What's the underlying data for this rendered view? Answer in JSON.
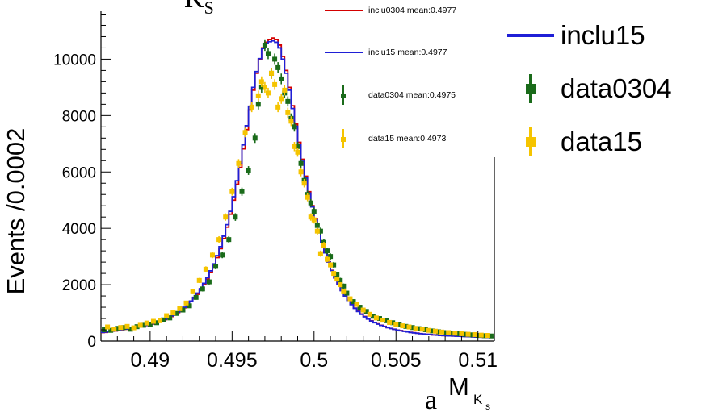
{
  "chart_data": {
    "type": "line",
    "title": "",
    "xlabel": "M",
    "xlabel_sub": "K",
    "xlabel_subsub": "s",
    "ylabel": "Events /0.0002",
    "xlim": [
      0.487,
      0.511
    ],
    "ylim": [
      0,
      11700
    ],
    "xticks": [
      0.49,
      0.495,
      0.5,
      0.505,
      0.51
    ],
    "xtick_labels": [
      "0.49",
      "0.495",
      "0.5",
      "0.505",
      "0.51"
    ],
    "yticks": [
      0,
      2000,
      4000,
      6000,
      8000,
      10000
    ],
    "ytick_labels": [
      "0",
      "2000",
      "4000",
      "6000",
      "8000",
      "10000"
    ],
    "grid": false,
    "stray_text_bottom": "a",
    "stray_text_top": "K",
    "stray_text_top_sub": "S",
    "series": [
      {
        "name": "inclu0304 mean:0.4977",
        "color": "#d40000",
        "style": "step",
        "x": [
          0.487,
          0.4872,
          0.4874,
          0.4876,
          0.4878,
          0.488,
          0.4882,
          0.4884,
          0.4886,
          0.4888,
          0.489,
          0.4892,
          0.4894,
          0.4896,
          0.4898,
          0.49,
          0.4902,
          0.4904,
          0.4906,
          0.4908,
          0.491,
          0.4912,
          0.4914,
          0.4916,
          0.4918,
          0.492,
          0.4922,
          0.4924,
          0.4926,
          0.4928,
          0.493,
          0.4932,
          0.4934,
          0.4936,
          0.4938,
          0.494,
          0.4942,
          0.4944,
          0.4946,
          0.4948,
          0.495,
          0.4952,
          0.4954,
          0.4956,
          0.4958,
          0.496,
          0.4962,
          0.4964,
          0.4966,
          0.4968,
          0.497,
          0.4972,
          0.4974,
          0.4976,
          0.4978,
          0.498,
          0.4982,
          0.4984,
          0.4986,
          0.4988,
          0.499,
          0.4992,
          0.4994,
          0.4996,
          0.4998,
          0.5,
          0.5002,
          0.5004,
          0.5006,
          0.5008,
          0.501,
          0.5012,
          0.5014,
          0.5016,
          0.5018,
          0.502,
          0.5022,
          0.5024,
          0.5026,
          0.5028,
          0.503,
          0.5032,
          0.5034,
          0.5036,
          0.5038,
          0.504,
          0.5042,
          0.5044,
          0.5046,
          0.5048,
          0.505,
          0.5052,
          0.5054,
          0.5056,
          0.5058,
          0.506,
          0.5062,
          0.5064,
          0.5066,
          0.5068,
          0.507,
          0.5072,
          0.5074,
          0.5076,
          0.5078,
          0.508,
          0.5082,
          0.5084,
          0.5086,
          0.5088,
          0.509,
          0.5092,
          0.5094,
          0.5096,
          0.5098,
          0.51,
          0.5102,
          0.5104,
          0.5106,
          0.5108
        ],
        "values": [
          300,
          310,
          330,
          350,
          360,
          380,
          400,
          420,
          440,
          460,
          480,
          500,
          520,
          550,
          580,
          600,
          630,
          670,
          720,
          760,
          810,
          870,
          940,
          1010,
          1090,
          1180,
          1280,
          1400,
          1520,
          1660,
          1820,
          2000,
          2200,
          2430,
          2680,
          2960,
          3280,
          3640,
          4040,
          4500,
          5000,
          5560,
          6160,
          6820,
          7500,
          8200,
          8900,
          9500,
          10000,
          10400,
          10600,
          10700,
          10750,
          10700,
          10500,
          10100,
          9600,
          9000,
          8350,
          7700,
          7050,
          6450,
          5850,
          5300,
          4800,
          4330,
          3900,
          3500,
          3140,
          2810,
          2510,
          2250,
          2010,
          1800,
          1610,
          1450,
          1300,
          1170,
          1060,
          960,
          870,
          790,
          720,
          660,
          610,
          560,
          520,
          480,
          450,
          420,
          390,
          370,
          350,
          330,
          310,
          295,
          280,
          265,
          250,
          240,
          230,
          220,
          210,
          200,
          195,
          190,
          185,
          180,
          175,
          170,
          165,
          160,
          155,
          150,
          145,
          140,
          138,
          135,
          132,
          130
        ]
      },
      {
        "name": "inclu15 mean:0.4977",
        "color": "#1f1fd6",
        "style": "step",
        "x": [
          0.487,
          0.4872,
          0.4874,
          0.4876,
          0.4878,
          0.488,
          0.4882,
          0.4884,
          0.4886,
          0.4888,
          0.489,
          0.4892,
          0.4894,
          0.4896,
          0.4898,
          0.49,
          0.4902,
          0.4904,
          0.4906,
          0.4908,
          0.491,
          0.4912,
          0.4914,
          0.4916,
          0.4918,
          0.492,
          0.4922,
          0.4924,
          0.4926,
          0.4928,
          0.493,
          0.4932,
          0.4934,
          0.4936,
          0.4938,
          0.494,
          0.4942,
          0.4944,
          0.4946,
          0.4948,
          0.495,
          0.4952,
          0.4954,
          0.4956,
          0.4958,
          0.496,
          0.4962,
          0.4964,
          0.4966,
          0.4968,
          0.497,
          0.4972,
          0.4974,
          0.4976,
          0.4978,
          0.498,
          0.4982,
          0.4984,
          0.4986,
          0.4988,
          0.499,
          0.4992,
          0.4994,
          0.4996,
          0.4998,
          0.5,
          0.5002,
          0.5004,
          0.5006,
          0.5008,
          0.501,
          0.5012,
          0.5014,
          0.5016,
          0.5018,
          0.502,
          0.5022,
          0.5024,
          0.5026,
          0.5028,
          0.503,
          0.5032,
          0.5034,
          0.5036,
          0.5038,
          0.504,
          0.5042,
          0.5044,
          0.5046,
          0.5048,
          0.505,
          0.5052,
          0.5054,
          0.5056,
          0.5058,
          0.506,
          0.5062,
          0.5064,
          0.5066,
          0.5068,
          0.507,
          0.5072,
          0.5074,
          0.5076,
          0.5078,
          0.508,
          0.5082,
          0.5084,
          0.5086,
          0.5088,
          0.509,
          0.5092,
          0.5094,
          0.5096,
          0.5098,
          0.51,
          0.5102,
          0.5104,
          0.5106,
          0.5108
        ],
        "values": [
          310,
          320,
          335,
          350,
          365,
          385,
          405,
          425,
          445,
          465,
          490,
          510,
          535,
          560,
          590,
          615,
          645,
          685,
          735,
          775,
          830,
          890,
          960,
          1030,
          1110,
          1200,
          1300,
          1420,
          1550,
          1700,
          1860,
          2050,
          2250,
          2490,
          2740,
          3030,
          3350,
          3720,
          4130,
          4600,
          5120,
          5690,
          6300,
          6960,
          7640,
          8330,
          9000,
          9560,
          10020,
          10380,
          10560,
          10620,
          10650,
          10600,
          10400,
          10000,
          9500,
          8900,
          8250,
          7620,
          6980,
          6380,
          5790,
          5250,
          4760,
          4300,
          3880,
          3490,
          3130,
          2800,
          2500,
          2240,
          2000,
          1790,
          1600,
          1440,
          1290,
          1160,
          1050,
          950,
          860,
          780,
          710,
          650,
          600,
          555,
          515,
          475,
          445,
          415,
          385,
          365,
          345,
          325,
          305,
          290,
          275,
          260,
          248,
          238,
          228,
          218,
          208,
          198,
          193,
          188,
          183,
          178,
          173,
          168,
          163,
          158,
          153,
          148,
          143,
          138,
          136,
          133,
          130,
          128
        ]
      },
      {
        "name": "data0304 mean:0.4975",
        "color": "#1a6b1a",
        "style": "points",
        "x": [
          0.4872,
          0.4876,
          0.488,
          0.4884,
          0.4888,
          0.4892,
          0.4896,
          0.49,
          0.4904,
          0.4908,
          0.4912,
          0.4916,
          0.492,
          0.4924,
          0.4928,
          0.4932,
          0.4936,
          0.494,
          0.4944,
          0.4948,
          0.4952,
          0.4956,
          0.496,
          0.4964,
          0.4966,
          0.4968,
          0.497,
          0.4972,
          0.4974,
          0.4976,
          0.4978,
          0.498,
          0.4982,
          0.4984,
          0.4986,
          0.4988,
          0.499,
          0.4992,
          0.4994,
          0.4996,
          0.4998,
          0.5,
          0.5002,
          0.5004,
          0.5006,
          0.5008,
          0.501,
          0.5012,
          0.5014,
          0.5016,
          0.5018,
          0.502,
          0.5024,
          0.5028,
          0.5032,
          0.5036,
          0.504,
          0.5044,
          0.5048,
          0.5052,
          0.5056,
          0.506,
          0.5064,
          0.5068,
          0.5072,
          0.5076,
          0.508,
          0.5084,
          0.5088,
          0.5092,
          0.5096,
          0.51,
          0.5104,
          0.5108
        ],
        "values": [
          400,
          380,
          450,
          480,
          420,
          510,
          560,
          600,
          650,
          750,
          820,
          980,
          1100,
          1250,
          1550,
          1850,
          2100,
          2650,
          3050,
          3600,
          4400,
          5300,
          6050,
          7200,
          8400,
          9000,
          10500,
          10200,
          9500,
          10000,
          9700,
          9300,
          8800,
          8500,
          7900,
          7600,
          6900,
          6300,
          5700,
          5200,
          4900,
          4600,
          4100,
          3900,
          3500,
          3200,
          3000,
          2700,
          2350,
          2150,
          1950,
          1700,
          1400,
          1200,
          1050,
          880,
          800,
          720,
          650,
          580,
          520,
          480,
          440,
          400,
          360,
          330,
          300,
          280,
          260,
          240,
          220,
          200,
          190,
          180
        ],
        "yerr": [
          40,
          40,
          40,
          40,
          40,
          45,
          45,
          45,
          50,
          55,
          60,
          65,
          70,
          75,
          80,
          90,
          95,
          105,
          110,
          120,
          135,
          145,
          155,
          170,
          185,
          190,
          205,
          200,
          195,
          200,
          195,
          190,
          185,
          180,
          175,
          170,
          165,
          155,
          150,
          145,
          140,
          135,
          130,
          125,
          120,
          115,
          110,
          105,
          100,
          95,
          90,
          85,
          75,
          70,
          65,
          60,
          55,
          55,
          50,
          50,
          45,
          45,
          45,
          40,
          40,
          40,
          35,
          35,
          35,
          35,
          30,
          30,
          30,
          30
        ]
      },
      {
        "name": "data15 mean:0.4973",
        "color": "#f5c400",
        "style": "points",
        "x": [
          0.4874,
          0.4878,
          0.4882,
          0.4886,
          0.489,
          0.4894,
          0.4898,
          0.4902,
          0.4906,
          0.491,
          0.4914,
          0.4918,
          0.4922,
          0.4926,
          0.493,
          0.4934,
          0.4938,
          0.4942,
          0.4946,
          0.495,
          0.4954,
          0.4958,
          0.4962,
          0.4966,
          0.4968,
          0.497,
          0.4972,
          0.4974,
          0.4976,
          0.4978,
          0.498,
          0.4982,
          0.4984,
          0.4986,
          0.4988,
          0.499,
          0.4992,
          0.4994,
          0.4996,
          0.4998,
          0.5,
          0.5002,
          0.5004,
          0.5006,
          0.5008,
          0.501,
          0.5012,
          0.5014,
          0.5016,
          0.5018,
          0.5022,
          0.5026,
          0.503,
          0.5034,
          0.5038,
          0.5042,
          0.5046,
          0.505,
          0.5054,
          0.5058,
          0.5062,
          0.5066,
          0.507,
          0.5074,
          0.5078,
          0.5082,
          0.5086,
          0.509,
          0.5094,
          0.5098,
          0.5102,
          0.5106
        ],
        "values": [
          500,
          420,
          480,
          520,
          470,
          560,
          640,
          700,
          720,
          900,
          1000,
          1150,
          1350,
          1750,
          2150,
          2550,
          3050,
          3600,
          4400,
          5300,
          6300,
          7400,
          8300,
          8700,
          9200,
          9000,
          8800,
          9500,
          9100,
          8300,
          8600,
          8900,
          8100,
          7800,
          6900,
          6700,
          6000,
          5600,
          5100,
          4400,
          4300,
          3900,
          3100,
          3400,
          2900,
          2700,
          2400,
          2200,
          2000,
          1750,
          1500,
          1300,
          1100,
          950,
          820,
          740,
          660,
          600,
          540,
          500,
          450,
          420,
          380,
          350,
          320,
          300,
          280,
          260,
          240,
          230,
          210,
          200
        ],
        "yerr": [
          45,
          40,
          45,
          45,
          45,
          50,
          50,
          55,
          55,
          60,
          65,
          70,
          75,
          85,
          90,
          100,
          110,
          120,
          130,
          140,
          155,
          170,
          180,
          185,
          190,
          190,
          185,
          195,
          190,
          180,
          185,
          185,
          180,
          175,
          165,
          160,
          155,
          150,
          140,
          130,
          130,
          125,
          110,
          115,
          105,
          100,
          95,
          90,
          90,
          85,
          75,
          70,
          65,
          60,
          55,
          55,
          50,
          50,
          45,
          45,
          45,
          40,
          40,
          40,
          35,
          35,
          35,
          35,
          30,
          30,
          30,
          30
        ]
      }
    ]
  },
  "legend_big": [
    {
      "label": "inclu15",
      "color": "#1f1fd6",
      "kind": "line"
    },
    {
      "label": "data0304",
      "color": "#1a6b1a",
      "kind": "marker"
    },
    {
      "label": "data15",
      "color": "#f5c400",
      "kind": "marker"
    }
  ],
  "legend_small": [
    {
      "label": "inclu0304 mean:0.4977",
      "color": "#d40000",
      "kind": "line"
    },
    {
      "label": "inclu15 mean:0.4977",
      "color": "#1f1fd6",
      "kind": "line"
    },
    {
      "label": "data0304 mean:0.4975",
      "color": "#1a6b1a",
      "kind": "marker"
    },
    {
      "label": "data15 mean:0.4973",
      "color": "#f5c400",
      "kind": "marker"
    }
  ]
}
